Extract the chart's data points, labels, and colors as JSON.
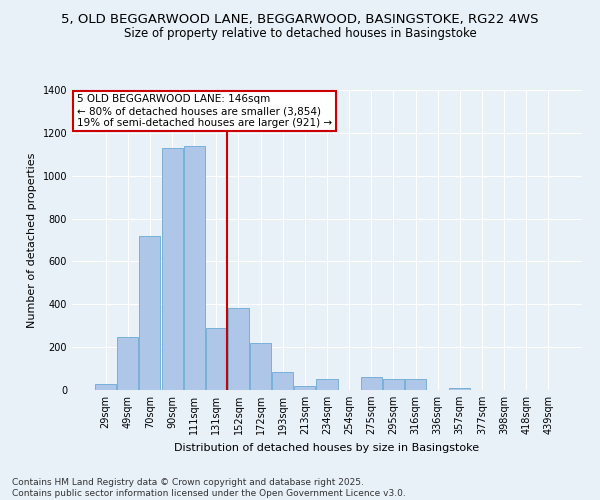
{
  "title_line1": "5, OLD BEGGARWOOD LANE, BEGGARWOOD, BASINGSTOKE, RG22 4WS",
  "title_line2": "Size of property relative to detached houses in Basingstoke",
  "xlabel": "Distribution of detached houses by size in Basingstoke",
  "ylabel": "Number of detached properties",
  "categories": [
    "29sqm",
    "49sqm",
    "70sqm",
    "90sqm",
    "111sqm",
    "131sqm",
    "152sqm",
    "172sqm",
    "193sqm",
    "213sqm",
    "234sqm",
    "254sqm",
    "275sqm",
    "295sqm",
    "316sqm",
    "336sqm",
    "357sqm",
    "377sqm",
    "398sqm",
    "418sqm",
    "439sqm"
  ],
  "values": [
    28,
    248,
    720,
    1130,
    1140,
    290,
    385,
    220,
    85,
    20,
    50,
    0,
    60,
    50,
    50,
    0,
    10,
    0,
    0,
    0,
    0
  ],
  "bar_color": "#aec6e8",
  "bar_edge_color": "#6aaad4",
  "vline_x": 5.5,
  "vline_color": "#cc0000",
  "annotation_box_text": "5 OLD BEGGARWOOD LANE: 146sqm\n← 80% of detached houses are smaller (3,854)\n19% of semi-detached houses are larger (921) →",
  "annotation_box_color": "#cc0000",
  "annotation_box_facecolor": "white",
  "ylim": [
    0,
    1400
  ],
  "yticks": [
    0,
    200,
    400,
    600,
    800,
    1000,
    1200,
    1400
  ],
  "bg_color": "#e8f0f8",
  "plot_bg_color": "#e8f0f8",
  "footer_line1": "Contains HM Land Registry data © Crown copyright and database right 2025.",
  "footer_line2": "Contains public sector information licensed under the Open Government Licence v3.0.",
  "title_fontsize": 9.5,
  "subtitle_fontsize": 8.5,
  "axis_label_fontsize": 8,
  "tick_fontsize": 7,
  "annotation_fontsize": 7.5,
  "footer_fontsize": 6.5
}
